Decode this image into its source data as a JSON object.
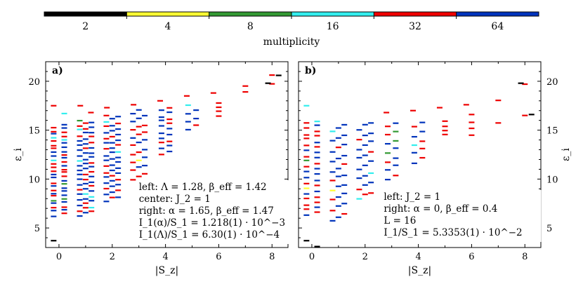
{
  "chart_data": [
    {
      "type": "colorbar",
      "label": "multiplicity",
      "entries": [
        {
          "label": "2",
          "color": "#000000"
        },
        {
          "label": "4",
          "color": "#ffff33"
        },
        {
          "label": "8",
          "color": "#339933"
        },
        {
          "label": "16",
          "color": "#33eeee"
        },
        {
          "label": "32",
          "color": "#ee0000"
        },
        {
          "label": "64",
          "color": "#0033bb"
        }
      ]
    },
    {
      "type": "scatter",
      "panel_label": "a)",
      "xlabel": "|S_z|",
      "ylabel": "ε_i",
      "xlim": [
        -0.5,
        8.6
      ],
      "ylim": [
        3,
        22
      ],
      "xticks": [
        "0",
        "2",
        "4",
        "6",
        "8"
      ],
      "yticks": [
        "5",
        "10",
        "15",
        "20"
      ],
      "annotation": [
        "left: Λ = 1.28, β_eff = 1.42",
        "center: J_2 = 1",
        "right: α = 1.65, β_eff = 1.47",
        "I_1(α)/S_1 = 1.218(1) · 10^−3",
        "I_1(Λ)/S_1 = 6.30(1) · 10^−4"
      ],
      "columns": [
        {
          "sz": 0,
          "min": 6.3,
          "max": 15.5,
          "n": 50,
          "extra": [
            {
              "y": 3.7,
              "mult": 2
            },
            {
              "y": 16.7,
              "mult": 16
            },
            {
              "y": 17.5,
              "mult": 32
            }
          ]
        },
        {
          "sz": 1,
          "min": 6.3,
          "max": 16.0,
          "n": 58,
          "extra": [
            {
              "y": 17.5,
              "mult": 32
            },
            {
              "y": 16.8,
              "mult": 32
            }
          ]
        },
        {
          "sz": 2,
          "min": 7.8,
          "max": 16.5,
          "n": 46,
          "extra": [
            {
              "y": 17.3,
              "mult": 32
            }
          ]
        },
        {
          "sz": 3,
          "min": 10.0,
          "max": 17.0,
          "n": 26,
          "extra": [
            {
              "y": 17.6,
              "mult": 32
            }
          ]
        },
        {
          "sz": 4,
          "min": 12.5,
          "max": 17.3,
          "n": 18,
          "extra": [
            {
              "y": 18.0,
              "mult": 32
            }
          ]
        },
        {
          "sz": 5,
          "min": 15.0,
          "max": 17.5,
          "n": 7,
          "extra": [
            {
              "y": 18.5,
              "mult": 32
            }
          ]
        },
        {
          "sz": 6,
          "min": 16.4,
          "max": 17.7,
          "n": 4,
          "extra": [
            {
              "y": 18.8,
              "mult": 32
            }
          ]
        },
        {
          "sz": 7,
          "min": 18.8,
          "max": 19.5,
          "n": 2,
          "extra": []
        },
        {
          "sz": 8,
          "min": 19.8,
          "max": 20.6,
          "n": 2,
          "extra": [
            {
              "y": 19.8,
              "mult": 2
            },
            {
              "y": 20.6,
              "mult": 2
            }
          ]
        }
      ]
    },
    {
      "type": "scatter",
      "panel_label": "b)",
      "xlabel": "|S_z|",
      "ylabel": "ε_i",
      "xlim": [
        -0.5,
        8.6
      ],
      "ylim": [
        3,
        22
      ],
      "xticks": [
        "0",
        "2",
        "4",
        "6",
        "8"
      ],
      "yticks": [
        "5",
        "10",
        "15",
        "20"
      ],
      "annotation": [
        "left: J_2 = 1",
        "right: α = 0, β_eff = 0.4",
        "L = 16",
        "I_1/S_1 = 5.3353(1) · 10^−2"
      ],
      "columns": [
        {
          "sz": 0,
          "min": 6.3,
          "max": 16.0,
          "n": 36,
          "extra": [
            {
              "y": 3.7,
              "mult": 2
            },
            {
              "y": 3.1,
              "mult": 2
            },
            {
              "y": 17.5,
              "mult": 16
            }
          ]
        },
        {
          "sz": 1,
          "min": 5.8,
          "max": 15.5,
          "n": 30,
          "extra": []
        },
        {
          "sz": 2,
          "min": 8.0,
          "max": 15.8,
          "n": 24,
          "extra": []
        },
        {
          "sz": 3,
          "min": 10.0,
          "max": 15.8,
          "n": 14,
          "extra": [
            {
              "y": 16.8,
              "mult": 32
            }
          ]
        },
        {
          "sz": 4,
          "min": 11.7,
          "max": 15.8,
          "n": 10,
          "extra": [
            {
              "y": 17.0,
              "mult": 32
            }
          ]
        },
        {
          "sz": 5,
          "min": 14.5,
          "max": 16.0,
          "n": 4,
          "extra": [
            {
              "y": 17.3,
              "mult": 32
            }
          ]
        },
        {
          "sz": 6,
          "min": 14.5,
          "max": 16.5,
          "n": 4,
          "extra": [
            {
              "y": 17.6,
              "mult": 32
            }
          ]
        },
        {
          "sz": 7,
          "min": 15.7,
          "max": 18.1,
          "n": 2,
          "extra": []
        },
        {
          "sz": 8,
          "min": 16.6,
          "max": 19.8,
          "n": 2,
          "extra": [
            {
              "y": 19.8,
              "mult": 2
            },
            {
              "y": 16.6,
              "mult": 2
            }
          ]
        }
      ]
    }
  ]
}
